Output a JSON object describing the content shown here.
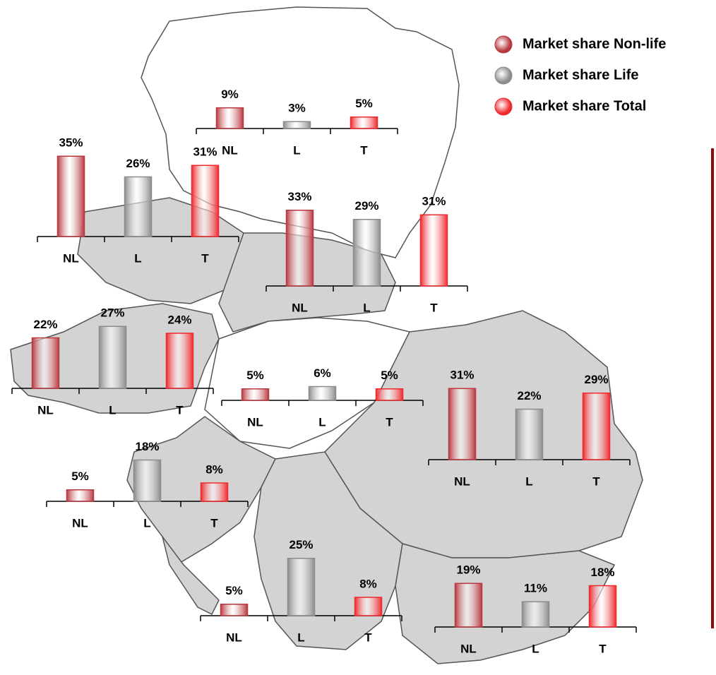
{
  "legend": {
    "series": [
      {
        "name": "Market share Non-life",
        "color": "#b8393f"
      },
      {
        "name": "Market share Life",
        "color": "#8c8c8c"
      },
      {
        "name": "Market share Total",
        "color": "#ee2a2e"
      }
    ]
  },
  "chart_data": [
    {
      "type": "bar",
      "categories": [
        "NL",
        "L",
        "T"
      ],
      "values": [
        9,
        3,
        5
      ],
      "value_labels": [
        "9%",
        "3%",
        "5%"
      ]
    },
    {
      "type": "bar",
      "categories": [
        "NL",
        "L",
        "T"
      ],
      "values": [
        35,
        26,
        31
      ],
      "value_labels": [
        "35%",
        "26%",
        "31%"
      ]
    },
    {
      "type": "bar",
      "categories": [
        "NL",
        "L",
        "T"
      ],
      "values": [
        33,
        29,
        31
      ],
      "value_labels": [
        "33%",
        "29%",
        "31%"
      ]
    },
    {
      "type": "bar",
      "categories": [
        "NL",
        "L",
        "T"
      ],
      "values": [
        22,
        27,
        24
      ],
      "value_labels": [
        "22%",
        "27%",
        "24%"
      ]
    },
    {
      "type": "bar",
      "categories": [
        "NL",
        "L",
        "T"
      ],
      "values": [
        5,
        6,
        5
      ],
      "value_labels": [
        "5%",
        "6%",
        "5%"
      ]
    },
    {
      "type": "bar",
      "categories": [
        "NL",
        "L",
        "T"
      ],
      "values": [
        31,
        22,
        29
      ],
      "value_labels": [
        "31%",
        "22%",
        "29%"
      ]
    },
    {
      "type": "bar",
      "categories": [
        "NL",
        "L",
        "T"
      ],
      "values": [
        5,
        18,
        8
      ],
      "value_labels": [
        "5%",
        "18%",
        "8%"
      ]
    },
    {
      "type": "bar",
      "categories": [
        "NL",
        "L",
        "T"
      ],
      "values": [
        5,
        25,
        8
      ],
      "value_labels": [
        "5%",
        "25%",
        "8%"
      ]
    },
    {
      "type": "bar",
      "categories": [
        "NL",
        "L",
        "T"
      ],
      "values": [
        19,
        11,
        18
      ],
      "value_labels": [
        "19%",
        "11%",
        "18%"
      ]
    }
  ]
}
